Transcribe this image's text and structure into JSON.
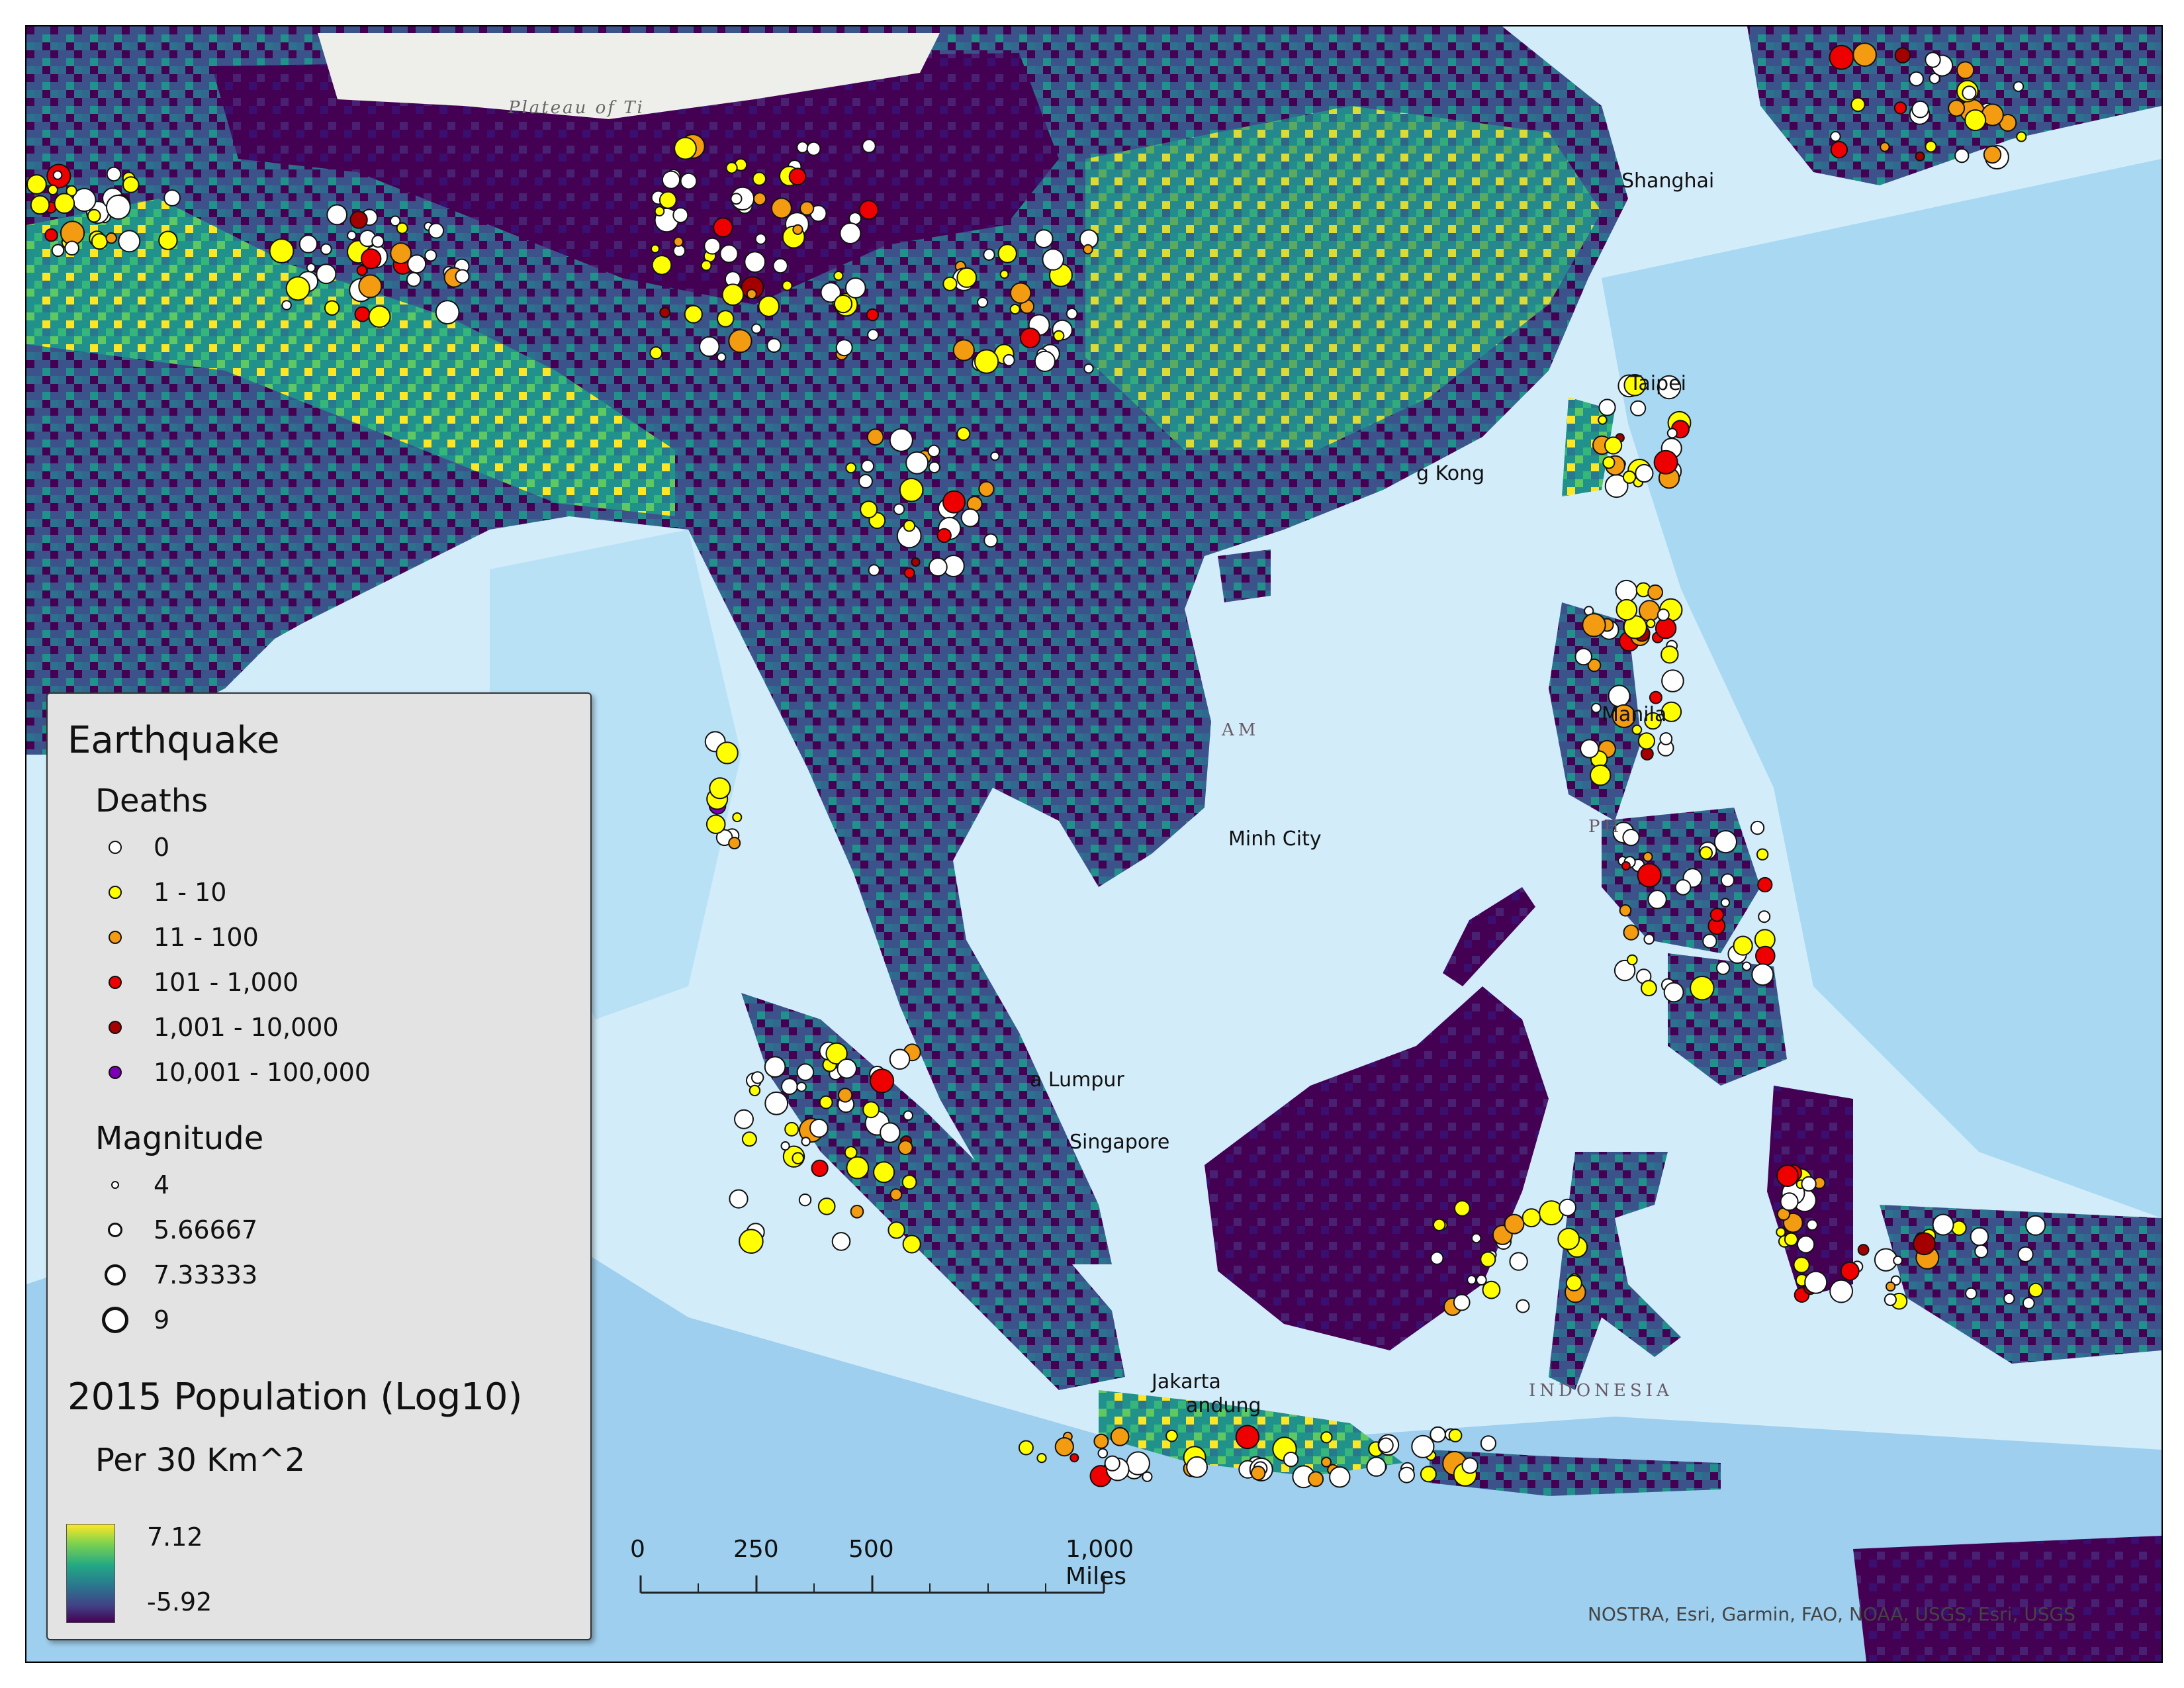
{
  "map": {
    "place_labels": [
      {
        "id": "plateau",
        "text": "Plateau of Ti"
      },
      {
        "id": "shanghai",
        "text": "Shanghai"
      },
      {
        "id": "taipei",
        "text": "Taipei"
      },
      {
        "id": "hongkong",
        "text": "g Kong"
      },
      {
        "id": "vietnam",
        "text": "AM"
      },
      {
        "id": "hcmc",
        "text": "Minh City"
      },
      {
        "id": "manila",
        "text": "Manila"
      },
      {
        "id": "philippines",
        "text": "PH"
      },
      {
        "id": "kl",
        "text": "a Lumpur"
      },
      {
        "id": "singapore",
        "text": "Singapore"
      },
      {
        "id": "jakarta",
        "text": "Jakarta"
      },
      {
        "id": "bandung",
        "text": "andung"
      },
      {
        "id": "indonesia",
        "text": "INDONESIA"
      }
    ],
    "colors": {
      "ocean_light": "#d6eefb",
      "ocean_deep": "#9fd2f0",
      "ice": "#eeeeea",
      "pop_low": "#440154",
      "pop_high": "#fde725"
    },
    "attribution": "NOSTRA, Esri, Garmin, FAO, NOAA, USGS, Esri, USGS"
  },
  "legend": {
    "title": "Earthquake",
    "deaths_title": "Deaths",
    "deaths": [
      {
        "label": "0",
        "color": "#ffffff"
      },
      {
        "label": "1 - 10",
        "color": "#ffff00"
      },
      {
        "label": "11 - 100",
        "color": "#f39c12"
      },
      {
        "label": "101 - 1,000",
        "color": "#ee0000"
      },
      {
        "label": "1,001 - 10,000",
        "color": "#a50000"
      },
      {
        "label": "10,001 - 100,000",
        "color": "#7b00b3"
      }
    ],
    "magnitude_title": "Magnitude",
    "magnitudes": [
      {
        "label": "4",
        "value": 4
      },
      {
        "label": "5.66667",
        "value": 5.66667
      },
      {
        "label": "7.33333",
        "value": 7.33333
      },
      {
        "label": "9",
        "value": 9
      }
    ],
    "population_title": "2015 Population (Log10)",
    "population_sub": "Per 30 Km^2",
    "ramp_max": "7.12",
    "ramp_min": "-5.92"
  },
  "scalebar": {
    "labels": [
      "0",
      "250",
      "500",
      "1,000 Miles"
    ],
    "values": [
      0,
      250,
      500,
      1000
    ]
  }
}
